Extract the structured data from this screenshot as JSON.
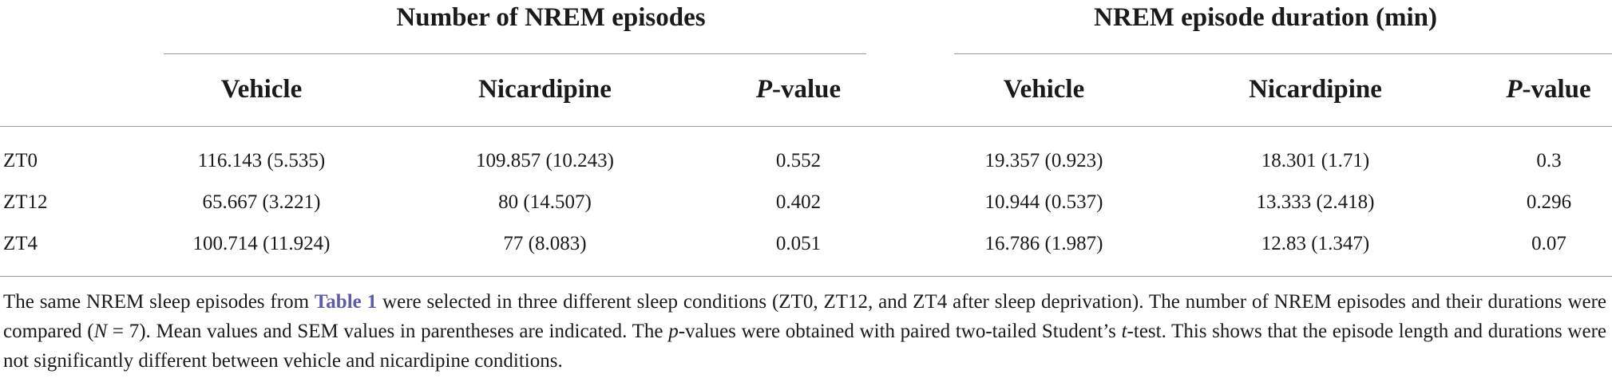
{
  "table": {
    "group_headers": [
      "Number of NREM episodes",
      "NREM episode duration (min)"
    ],
    "column_headers": [
      {
        "text": "Vehicle",
        "italic": ""
      },
      {
        "text": "Nicardipine",
        "italic": ""
      },
      {
        "italic": "P",
        "text": "-value"
      },
      {
        "text": "Vehicle",
        "italic": ""
      },
      {
        "text": "Nicardipine",
        "italic": ""
      },
      {
        "italic": "P",
        "text": "-value"
      }
    ],
    "rows": [
      {
        "label": "ZT0",
        "cells": [
          "116.143 (5.535)",
          "109.857 (10.243)",
          "0.552",
          "19.357 (0.923)",
          "18.301 (1.71)",
          "0.3"
        ]
      },
      {
        "label": "ZT12",
        "cells": [
          "65.667 (3.221)",
          "80 (14.507)",
          "0.402",
          "10.944 (0.537)",
          "13.333 (2.418)",
          "0.296"
        ]
      },
      {
        "label": "ZT4",
        "cells": [
          "100.714 (11.924)",
          "77 (8.083)",
          "0.051",
          "16.786 (1.987)",
          "12.83 (1.347)",
          "0.07"
        ]
      }
    ]
  },
  "caption": {
    "t1": "The same NREM sleep episodes from ",
    "link": "Table 1",
    "t2": " were selected in three different sleep conditions (ZT0, ZT12, and ZT4 after sleep deprivation). The number of NREM episodes and their durations were compared (",
    "n_sym": "N",
    "t3": " = 7). Mean values and SEM values in parentheses are indicated. The ",
    "p_sym": "p",
    "t4": "-values were obtained with paired two-tailed Student’s ",
    "t_sym": "t",
    "t5": "-test. This shows that the episode length and durations were not significantly different between vehicle and nicardipine conditions."
  }
}
